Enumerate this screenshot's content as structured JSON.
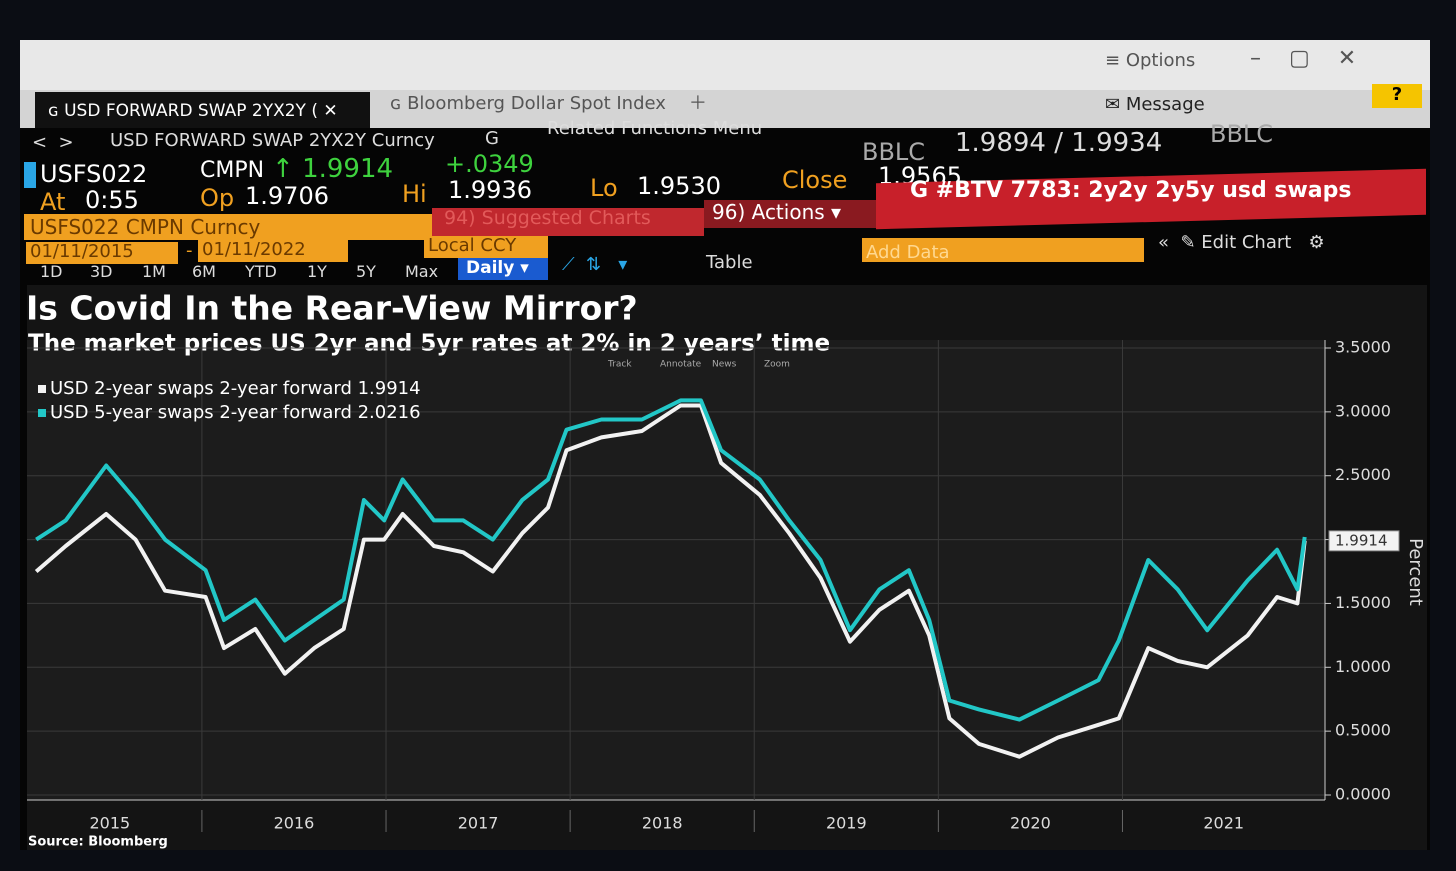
{
  "window": {
    "options": "Options",
    "tabs": [
      "USD FORWARD SWAP 2YX2Y (",
      "Bloomberg Dollar Spot Index"
    ],
    "message": "Message",
    "help": "?"
  },
  "nav": {
    "security": "USD FORWARD SWAP 2YX2Y Curncy",
    "graph": "G",
    "menu": "Related Functions Menu"
  },
  "quote": {
    "source": "BBLC",
    "bid_ask": "1.9894 / 1.9934",
    "source2": "BBLC"
  },
  "ticker": {
    "symbol": "USFS022",
    "pricing": "CMPN",
    "last": "1.9914",
    "change": "+.0349",
    "at_label": "At",
    "at": "0:55",
    "open_label": "Op",
    "open": "1.9706",
    "high_label": "Hi",
    "high": "1.9936",
    "low_label": "Lo",
    "low": "1.9530",
    "close_label": "Close",
    "close": "1.9565"
  },
  "command_bar": {
    "security": "USFS022 CMPN Curncy",
    "suggested": "94) Suggested Charts",
    "actions": "96) Actions",
    "story": "G #BTV 7783: 2y2y 2y5y usd swaps"
  },
  "toolbar": {
    "start": "01/11/2015",
    "date_separator": "-",
    "end": "01/11/2022",
    "currency": "Local CCY",
    "periods": [
      "1D",
      "3D",
      "1M",
      "6M",
      "YTD",
      "1Y",
      "5Y",
      "Max"
    ],
    "frequency": "Daily",
    "table": "Table",
    "add_data": "Add Data",
    "edit": "Edit Chart",
    "tools": [
      "Track",
      "Annotate",
      "News",
      "Zoom"
    ]
  },
  "chart_data": {
    "type": "line",
    "title": "Is Covid In the Rear-View Mirror?",
    "subtitle": "The market prices US 2yr and 5yr rates at 2% in 2 years’ time",
    "source": "Source: Bloomberg",
    "ylabel": "Percent",
    "last_value": "1.9914",
    "x": [
      2015.1,
      2015.26,
      2015.48,
      2015.64,
      2015.8,
      2016.02,
      2016.12,
      2016.29,
      2016.45,
      2016.61,
      2016.77,
      2016.88,
      2016.99,
      2017.09,
      2017.26,
      2017.42,
      2017.58,
      2017.74,
      2017.88,
      2017.98,
      2018.17,
      2018.39,
      2018.6,
      2018.71,
      2018.82,
      2019.03,
      2019.19,
      2019.36,
      2019.52,
      2019.68,
      2019.84,
      2019.95,
      2020.06,
      2020.22,
      2020.44,
      2020.65,
      2020.87,
      2020.98,
      2021.14,
      2021.3,
      2021.46,
      2021.68,
      2021.84,
      2021.95,
      2021.99
    ],
    "series": [
      {
        "name": "USD 2-year swaps 2-year forward 1.9914",
        "color": "#f2f2f2",
        "values": [
          1.75,
          1.95,
          2.2,
          2.0,
          1.6,
          1.55,
          1.15,
          1.3,
          0.95,
          1.15,
          1.3,
          2.0,
          2.0,
          2.2,
          1.95,
          1.9,
          1.75,
          2.05,
          2.25,
          2.7,
          2.8,
          2.85,
          3.05,
          3.05,
          2.6,
          2.35,
          2.05,
          1.7,
          1.2,
          1.45,
          1.6,
          1.25,
          0.6,
          0.4,
          0.3,
          0.45,
          0.55,
          0.6,
          1.15,
          1.05,
          1.0,
          1.25,
          1.55,
          1.5,
          1.99
        ]
      },
      {
        "name": "USD 5-year swaps 2-year forward 2.0216",
        "color": "#22c7c7",
        "values": [
          2.0,
          2.15,
          2.58,
          2.31,
          2.0,
          1.76,
          1.37,
          1.53,
          1.21,
          1.37,
          1.53,
          2.31,
          2.15,
          2.47,
          2.15,
          2.15,
          2.0,
          2.31,
          2.47,
          2.86,
          2.94,
          2.94,
          3.09,
          3.09,
          2.7,
          2.47,
          2.15,
          1.84,
          1.29,
          1.61,
          1.76,
          1.37,
          0.74,
          0.67,
          0.59,
          0.74,
          0.9,
          1.21,
          1.84,
          1.61,
          1.29,
          1.68,
          1.92,
          1.61,
          2.02
        ]
      }
    ],
    "xlim": [
      2015.05,
      2022.1
    ],
    "xticks": [
      2015,
      2016,
      2017,
      2018,
      2019,
      2020,
      2021
    ],
    "ylim": [
      0,
      3.5
    ],
    "yticks": [
      {
        "value": 0,
        "label": "0.0000"
      },
      {
        "value": 0.5,
        "label": "0.5000"
      },
      {
        "value": 1,
        "label": "1.0000"
      },
      {
        "value": 1.5,
        "label": "1.5000"
      },
      {
        "value": 2,
        "label": "2.0000"
      },
      {
        "value": 2.5,
        "label": "2.5000"
      },
      {
        "value": 3,
        "label": "3.0000"
      },
      {
        "value": 3.5,
        "label": "3.5000"
      }
    ],
    "grid": true
  }
}
